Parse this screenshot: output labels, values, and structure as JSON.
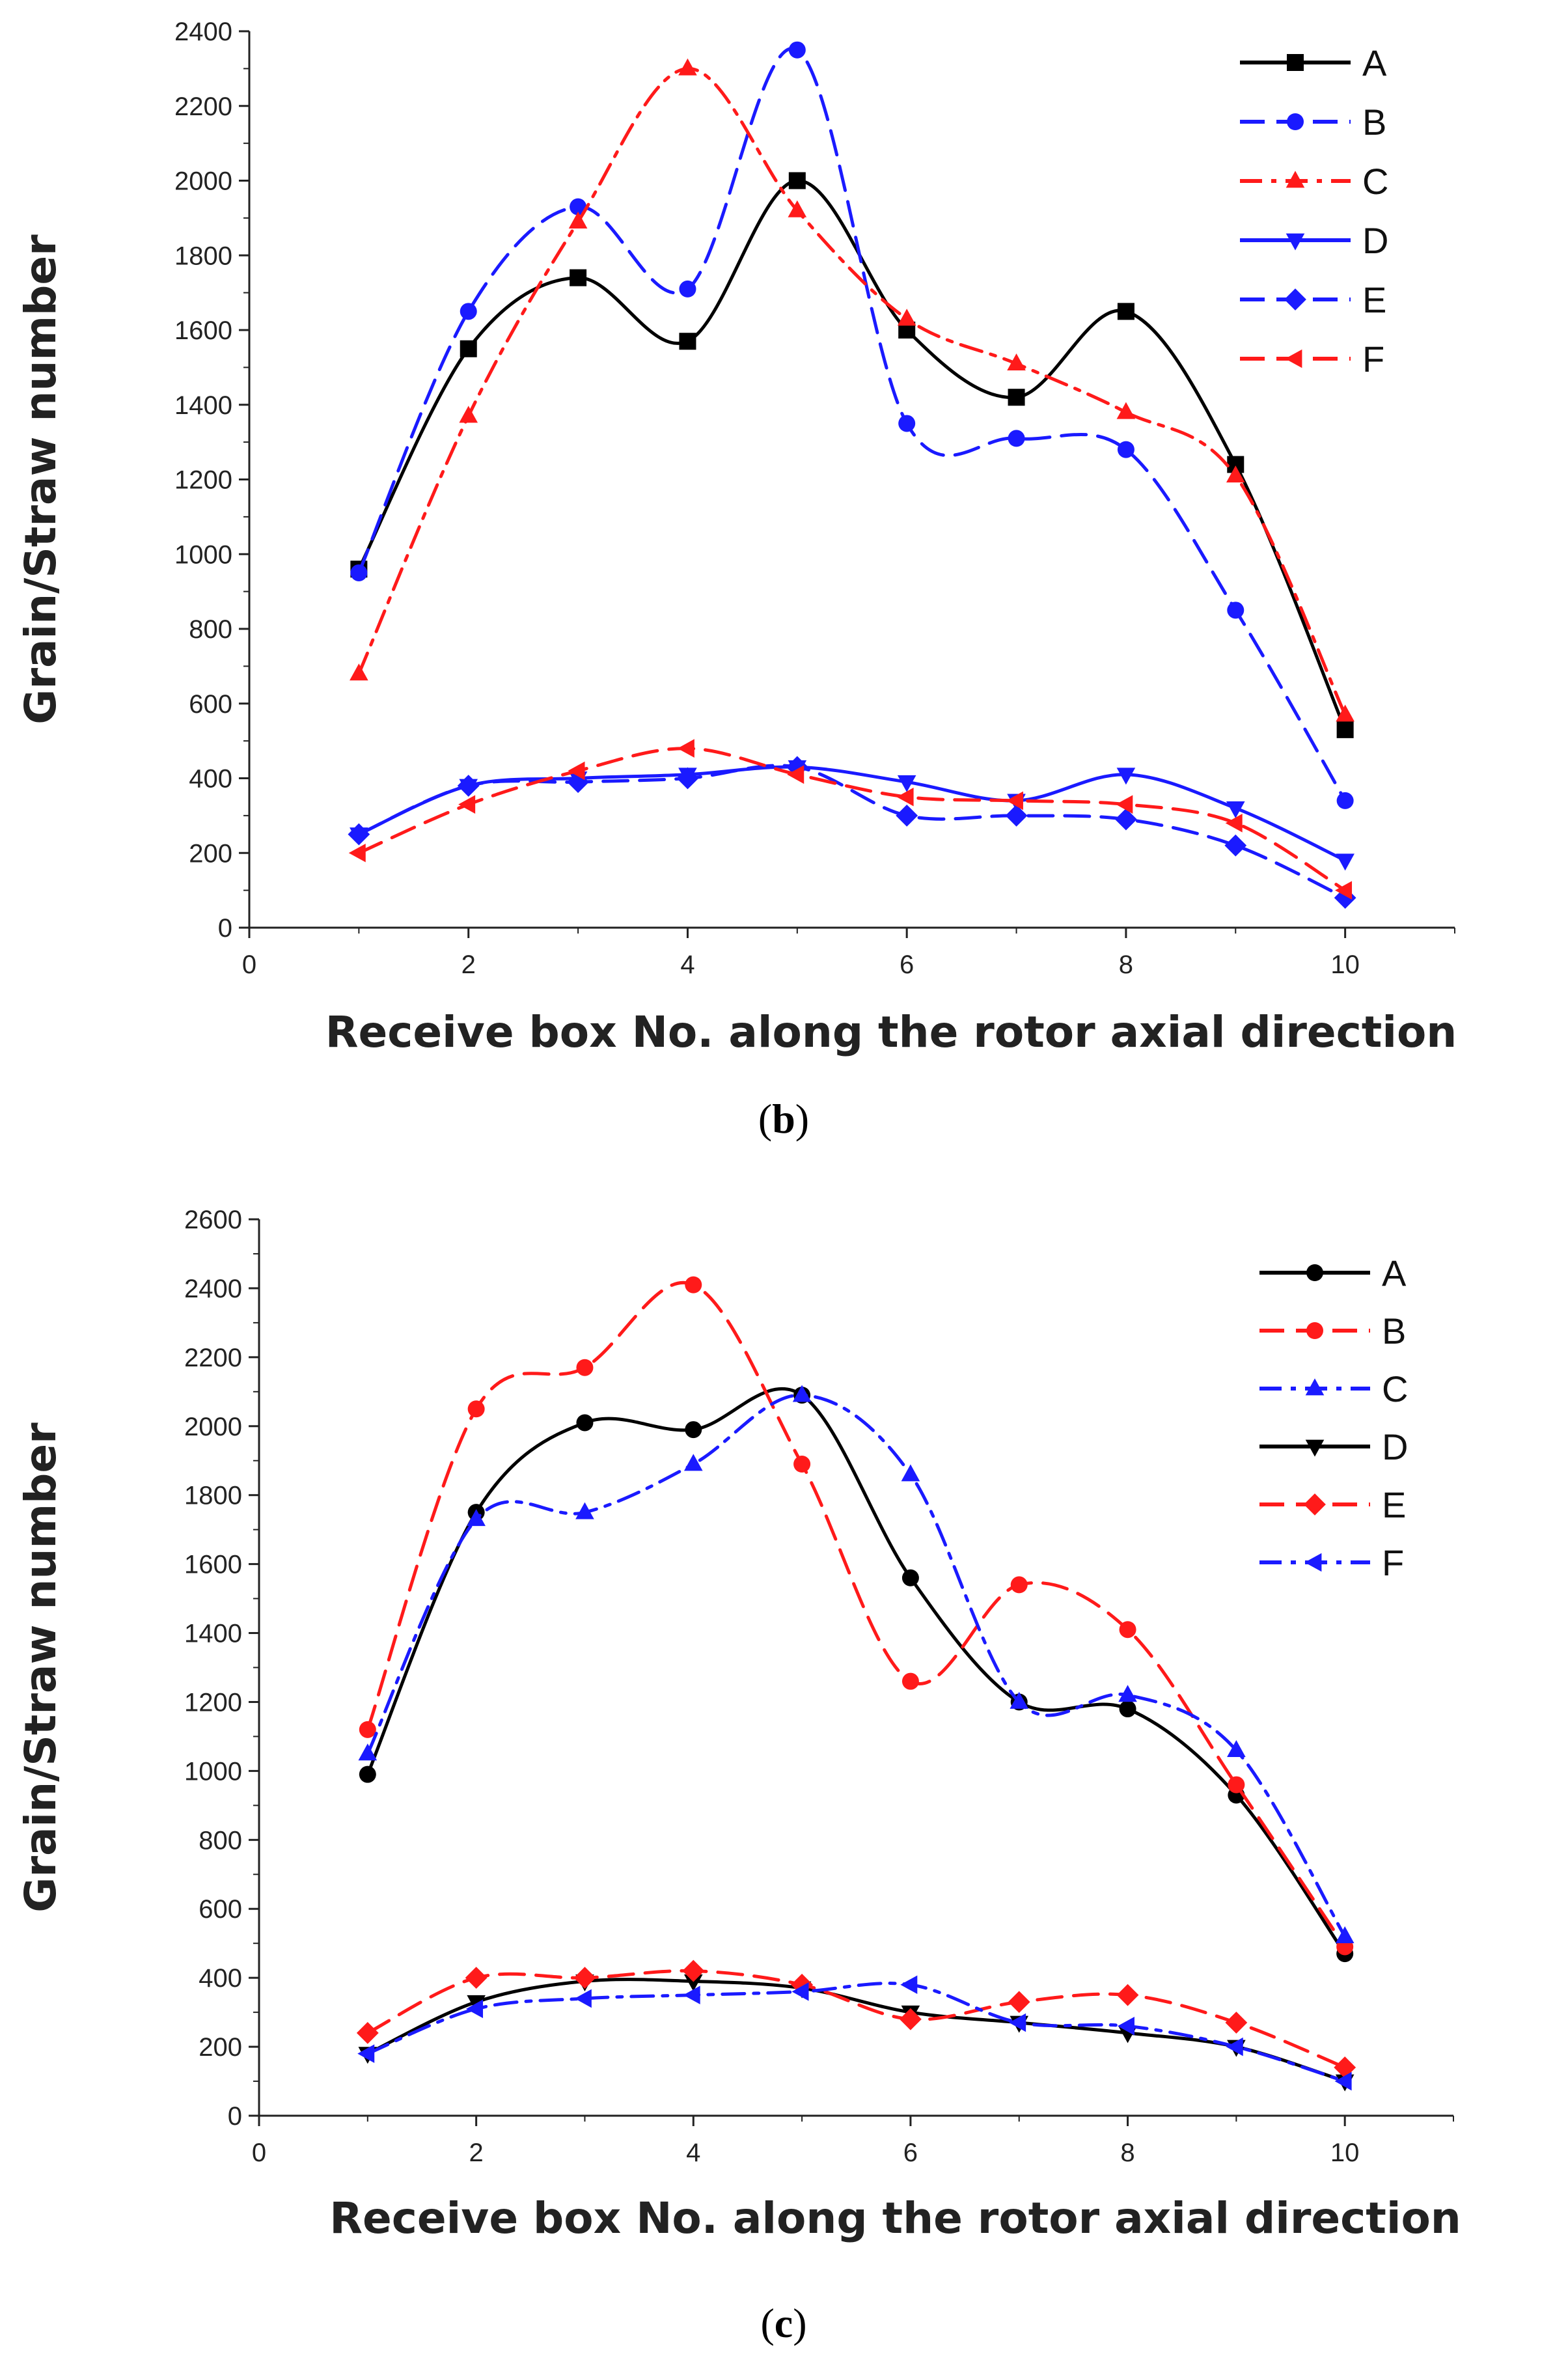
{
  "chart_data": [
    {
      "type": "line",
      "panel_label": "b",
      "xlabel": "Receive box No. along the rotor axial direction",
      "ylabel": "Grain/Straw number",
      "xlim": [
        0,
        11
      ],
      "ylim": [
        0,
        2400
      ],
      "x_ticks": [
        "0",
        "2",
        "4",
        "6",
        "8",
        "10"
      ],
      "y_ticks": [
        "0",
        "200",
        "400",
        "600",
        "800",
        "1000",
        "1200",
        "1400",
        "1600",
        "1800",
        "2000",
        "2200",
        "2400"
      ],
      "legend_position": "top-right",
      "x": [
        1,
        2,
        3,
        4,
        5,
        6,
        7,
        8,
        9,
        10
      ],
      "series": [
        {
          "name": "A",
          "color": "#000000",
          "dash": "solid",
          "marker": "square",
          "values": [
            960,
            1550,
            1740,
            1570,
            2000,
            1600,
            1420,
            1650,
            1240,
            530
          ]
        },
        {
          "name": "B",
          "color": "#1a1aff",
          "dash": "dash",
          "marker": "circle",
          "values": [
            950,
            1650,
            1930,
            1710,
            2350,
            1350,
            1310,
            1280,
            850,
            340
          ]
        },
        {
          "name": "C",
          "color": "#ff1a1a",
          "dash": "dashdot",
          "marker": "triangle-up",
          "values": [
            680,
            1370,
            1890,
            2300,
            1920,
            1630,
            1510,
            1380,
            1210,
            570
          ]
        },
        {
          "name": "D",
          "color": "#1a1aff",
          "dash": "solid",
          "marker": "triangle-down",
          "values": [
            250,
            380,
            400,
            410,
            430,
            390,
            340,
            410,
            320,
            180
          ]
        },
        {
          "name": "E",
          "color": "#1a1aff",
          "dash": "dash",
          "marker": "diamond",
          "values": [
            250,
            380,
            390,
            400,
            430,
            300,
            300,
            290,
            220,
            80
          ]
        },
        {
          "name": "F",
          "color": "#ff1a1a",
          "dash": "dash",
          "marker": "left-triangle",
          "values": [
            200,
            330,
            420,
            480,
            410,
            350,
            340,
            330,
            280,
            100
          ]
        }
      ]
    },
    {
      "type": "line",
      "panel_label": "c",
      "xlabel": "Receive box No. along the rotor axial direction",
      "ylabel": "Grain/Straw number",
      "xlim": [
        0,
        11
      ],
      "ylim": [
        0,
        2600
      ],
      "x_ticks": [
        "0",
        "2",
        "4",
        "6",
        "8",
        "10"
      ],
      "y_ticks": [
        "0",
        "200",
        "400",
        "600",
        "800",
        "1000",
        "1200",
        "1400",
        "1600",
        "1800",
        "2000",
        "2200",
        "2400",
        "2600"
      ],
      "legend_position": "top-right",
      "x": [
        1,
        2,
        3,
        4,
        5,
        6,
        7,
        8,
        9,
        10
      ],
      "series": [
        {
          "name": "A",
          "color": "#000000",
          "dash": "solid",
          "marker": "circle",
          "values": [
            990,
            1750,
            2010,
            1990,
            2090,
            1560,
            1200,
            1180,
            930,
            470
          ]
        },
        {
          "name": "B",
          "color": "#ff1a1a",
          "dash": "dash",
          "marker": "circle",
          "values": [
            1120,
            2050,
            2170,
            2410,
            1890,
            1260,
            1540,
            1410,
            960,
            490
          ]
        },
        {
          "name": "C",
          "color": "#1a1aff",
          "dash": "dashdot",
          "marker": "triangle-up",
          "values": [
            1050,
            1730,
            1750,
            1890,
            2090,
            1860,
            1200,
            1220,
            1060,
            520
          ]
        },
        {
          "name": "D",
          "color": "#000000",
          "dash": "solid",
          "marker": "triangle-down",
          "values": [
            180,
            330,
            390,
            390,
            370,
            300,
            270,
            240,
            200,
            100
          ]
        },
        {
          "name": "E",
          "color": "#ff1a1a",
          "dash": "dash",
          "marker": "diamond",
          "values": [
            240,
            400,
            400,
            420,
            380,
            280,
            330,
            350,
            270,
            140
          ]
        },
        {
          "name": "F",
          "color": "#1a1aff",
          "dash": "dashdot",
          "marker": "left-triangle",
          "values": [
            180,
            310,
            340,
            350,
            360,
            380,
            270,
            260,
            200,
            100
          ]
        }
      ]
    }
  ]
}
